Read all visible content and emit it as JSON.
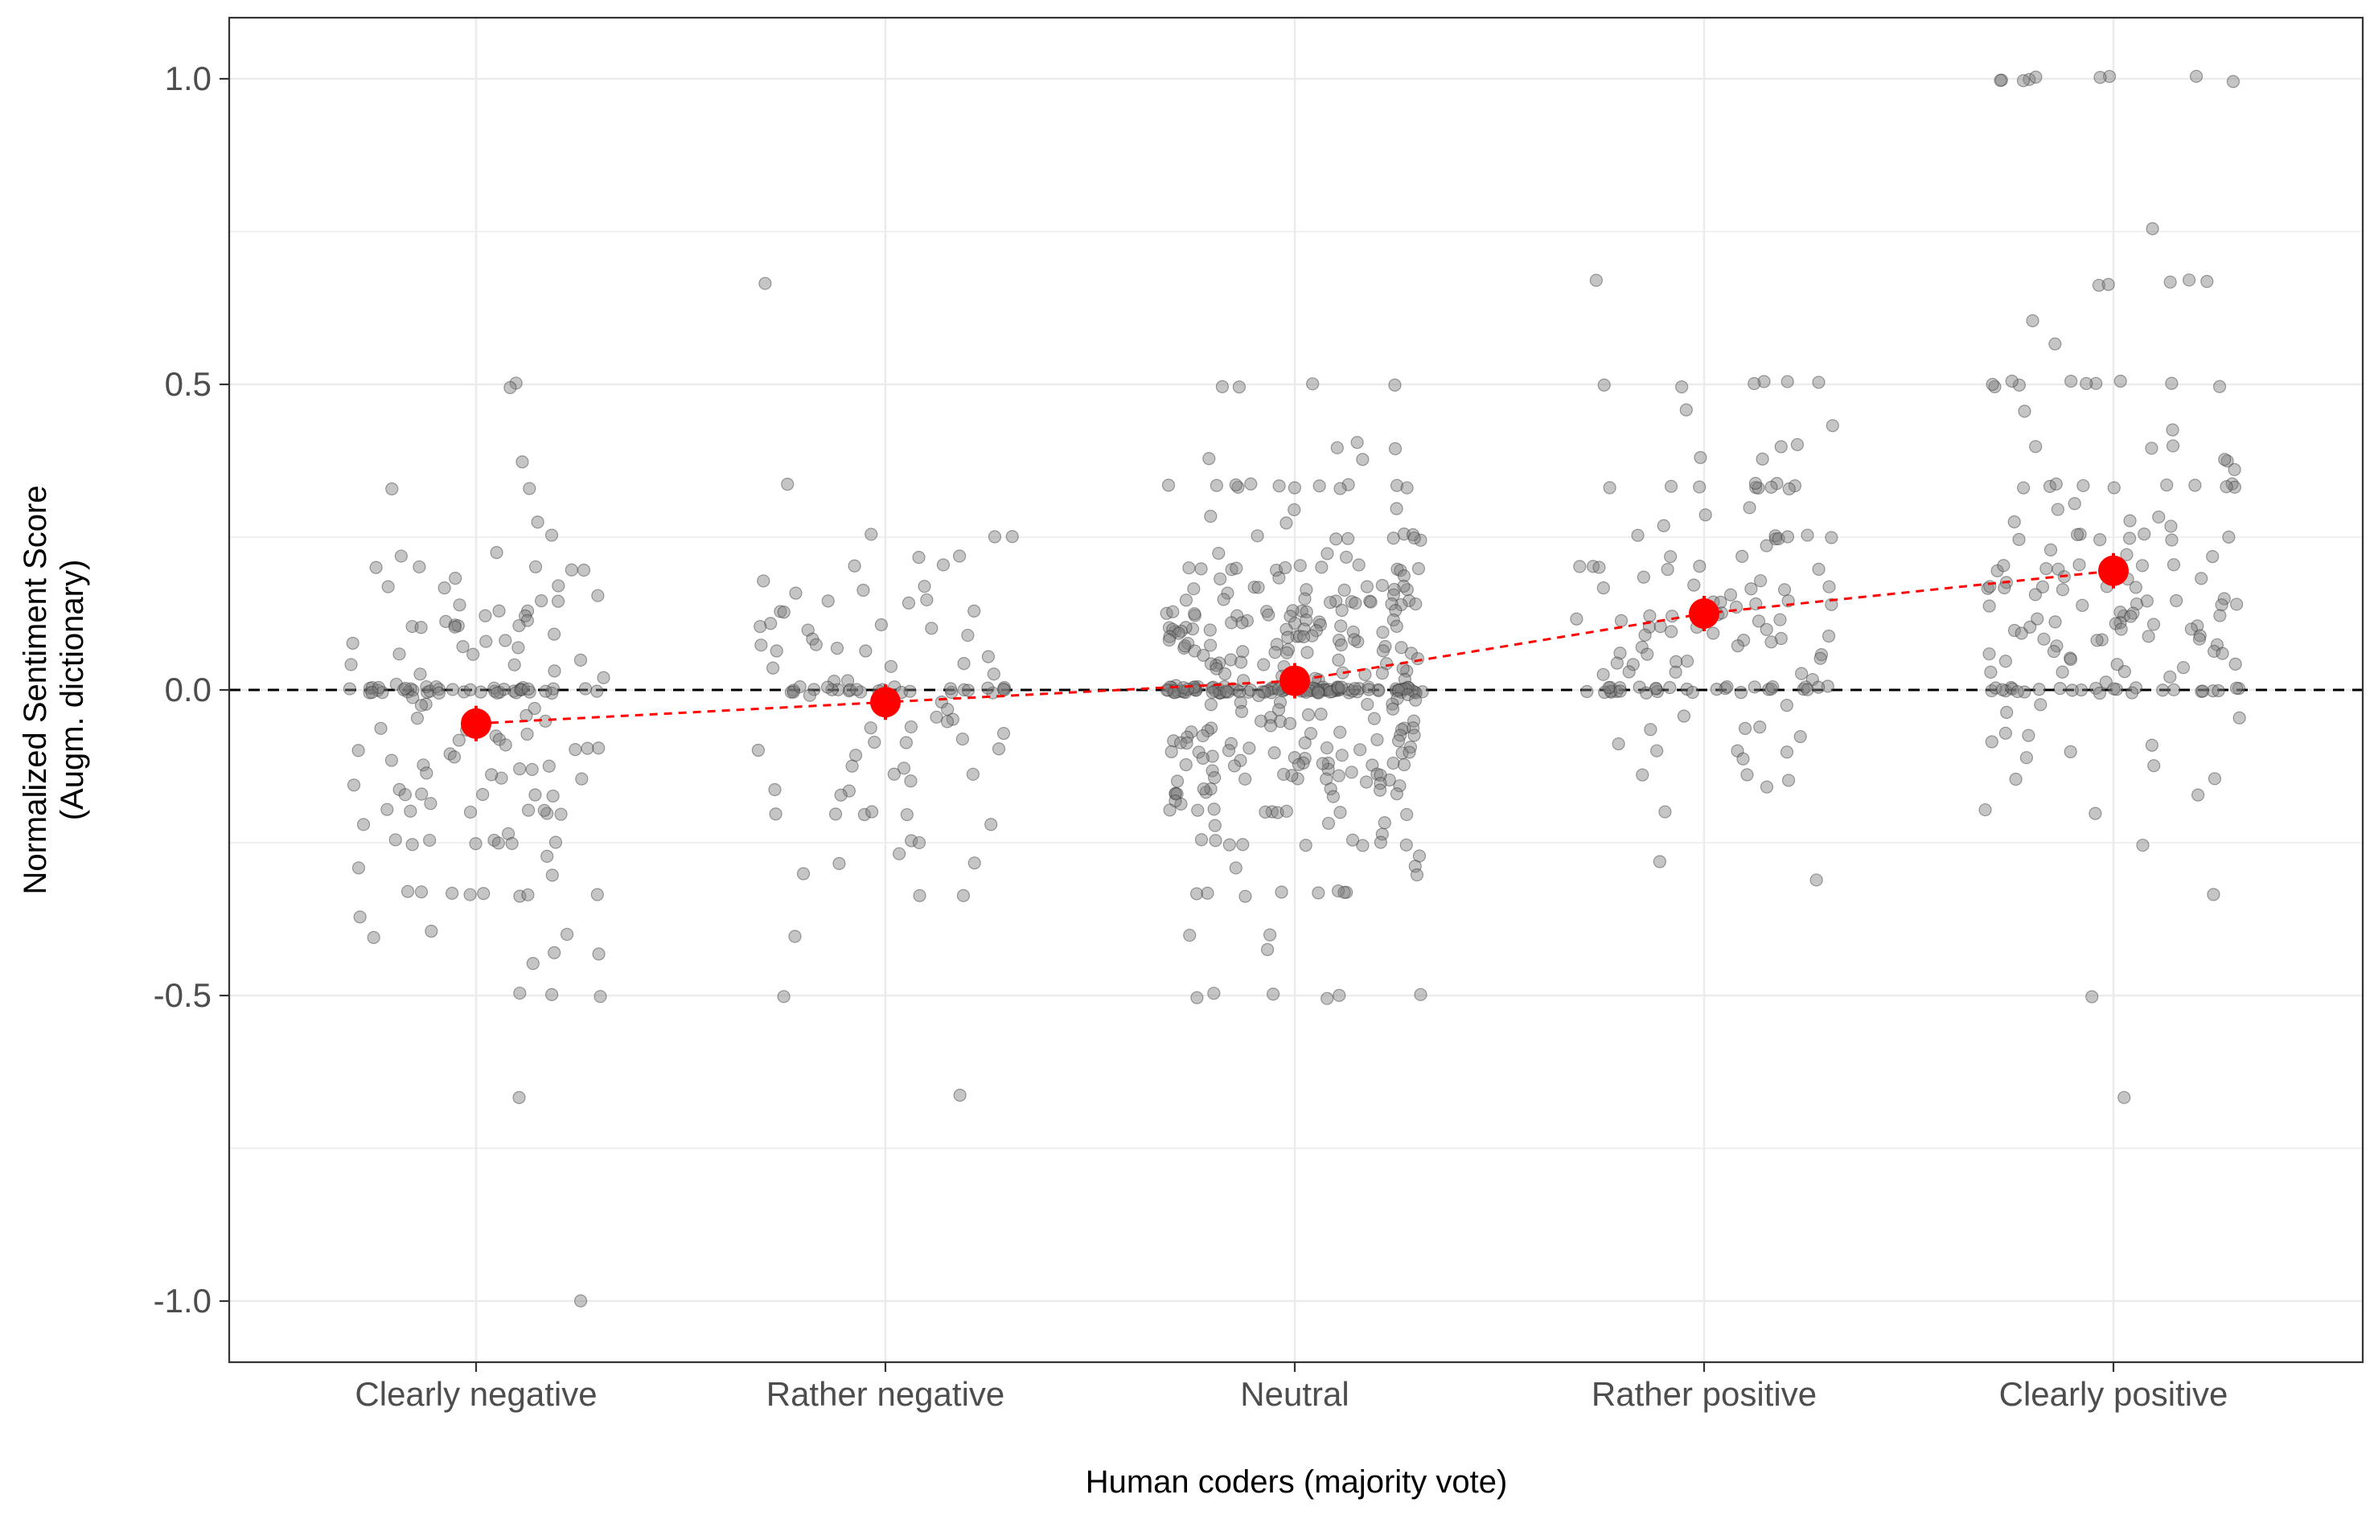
{
  "chart_data": {
    "type": "scatter",
    "title": "",
    "xlabel": "Human coders (majority vote)",
    "ylabel": [
      "Normalized Sentiment Score",
      "(Augm. dictionary)"
    ],
    "categories": [
      "Clearly negative",
      "Rather negative",
      "Neutral",
      "Rather positive",
      "Clearly positive"
    ],
    "ylim": [
      -1.1,
      1.1
    ],
    "yticks": [
      -1.0,
      -0.5,
      0.0,
      0.5,
      1.0
    ],
    "ytick_labels": [
      "-1.0",
      "-0.5",
      "0.0",
      "0.5",
      "1.0"
    ],
    "grid": true,
    "reference_line": {
      "y": 0,
      "style": "dashed",
      "color": "#000000"
    },
    "point_color": "#7f7f7f",
    "mean_series": {
      "name": "",
      "color": "#ff0000",
      "style": "dashed",
      "values": [
        -0.055,
        -0.02,
        0.015,
        0.125,
        0.195
      ]
    },
    "jitter_points": [
      {
        "category": "Clearly negative",
        "values": [
          0.5,
          0.5,
          0.375,
          0.333,
          0.333,
          0.273,
          0.25,
          0.222,
          0.222,
          0.2,
          0.2,
          0.2,
          0.2,
          0.2,
          0.182,
          0.167,
          0.167,
          0.167,
          0.154,
          0.143,
          0.143,
          0.143,
          0.125,
          0.125,
          0.125,
          0.12,
          0.111,
          0.111,
          0.111,
          0.1,
          0.1,
          0.1,
          0.1,
          0.1,
          0.091,
          0.083,
          0.083,
          0.077,
          0.071,
          0.067,
          0.063,
          0.059,
          0.05,
          0.043,
          0.04,
          0.033,
          0.029,
          0.02,
          0.01,
          0.005,
          0,
          0,
          0,
          0,
          0,
          0,
          0,
          0,
          0,
          0,
          0,
          0,
          0,
          0,
          0,
          0,
          0,
          0,
          0,
          0,
          0,
          0,
          0,
          0,
          0,
          0,
          0,
          0,
          0,
          0,
          0,
          0,
          0,
          0,
          0,
          0,
          0,
          0,
          0,
          0,
          -0.01,
          -0.02,
          -0.025,
          -0.03,
          -0.04,
          -0.05,
          -0.056,
          -0.063,
          -0.067,
          -0.071,
          -0.077,
          -0.083,
          -0.083,
          -0.091,
          -0.091,
          -0.1,
          -0.1,
          -0.1,
          -0.1,
          -0.111,
          -0.111,
          -0.118,
          -0.125,
          -0.125,
          -0.125,
          -0.133,
          -0.143,
          -0.143,
          -0.143,
          -0.154,
          -0.167,
          -0.167,
          -0.167,
          -0.167,
          -0.167,
          -0.176,
          -0.182,
          -0.2,
          -0.2,
          -0.2,
          -0.2,
          -0.2,
          -0.2,
          -0.2,
          -0.222,
          -0.231,
          -0.25,
          -0.25,
          -0.25,
          -0.25,
          -0.25,
          -0.25,
          -0.25,
          -0.25,
          -0.273,
          -0.286,
          -0.3,
          -0.333,
          -0.333,
          -0.333,
          -0.333,
          -0.333,
          -0.333,
          -0.333,
          -0.333,
          -0.375,
          -0.4,
          -0.4,
          -0.4,
          -0.429,
          -0.429,
          -0.444,
          -0.5,
          -0.5,
          -0.5,
          -0.667,
          -1.0
        ]
      },
      {
        "category": "Rather negative",
        "values": [
          0.667,
          0.333,
          0.25,
          0.25,
          0.25,
          0.222,
          0.222,
          0.2,
          0.2,
          0.182,
          0.167,
          0.167,
          0.154,
          0.143,
          0.143,
          0.143,
          0.125,
          0.125,
          0.125,
          0.111,
          0.111,
          0.1,
          0.1,
          0.1,
          0.091,
          0.083,
          0.077,
          0.071,
          0.067,
          0.063,
          0.059,
          0.05,
          0.043,
          0.04,
          0.033,
          0.029,
          0.02,
          0.01,
          0,
          0,
          0,
          0,
          0,
          0,
          0,
          0,
          0,
          0,
          0,
          0,
          0,
          0,
          0,
          0,
          0,
          0,
          0,
          0,
          0,
          0,
          0,
          0,
          0,
          0,
          -0.01,
          -0.02,
          -0.03,
          -0.04,
          -0.05,
          -0.056,
          -0.063,
          -0.067,
          -0.071,
          -0.077,
          -0.083,
          -0.091,
          -0.1,
          -0.1,
          -0.111,
          -0.125,
          -0.125,
          -0.143,
          -0.143,
          -0.154,
          -0.167,
          -0.167,
          -0.167,
          -0.2,
          -0.2,
          -0.2,
          -0.2,
          -0.2,
          -0.222,
          -0.25,
          -0.25,
          -0.273,
          -0.286,
          -0.286,
          -0.3,
          -0.333,
          -0.333,
          -0.4,
          -0.5,
          -0.667
        ]
      },
      {
        "category": "Neutral",
        "values": [
          0.5,
          0.5,
          0.5,
          0.5,
          0.4,
          0.4,
          0.4,
          0.375,
          0.375,
          0.333,
          0.333,
          0.333,
          0.333,
          0.333,
          0.333,
          0.333,
          0.333,
          0.333,
          0.333,
          0.333,
          0.333,
          0.3,
          0.3,
          0.286,
          0.273,
          0.25,
          0.25,
          0.25,
          0.25,
          0.25,
          0.25,
          0.25,
          0.25,
          0.222,
          0.222,
          0.222,
          0.2,
          0.2,
          0.2,
          0.2,
          0.2,
          0.2,
          0.2,
          0.2,
          0.2,
          0.2,
          0.2,
          0.2,
          0.182,
          0.182,
          0.182,
          0.167,
          0.167,
          0.167,
          0.167,
          0.167,
          0.167,
          0.167,
          0.167,
          0.167,
          0.167,
          0.154,
          0.154,
          0.154,
          0.143,
          0.143,
          0.143,
          0.143,
          0.143,
          0.143,
          0.143,
          0.143,
          0.143,
          0.143,
          0.143,
          0.143,
          0.133,
          0.133,
          0.125,
          0.125,
          0.125,
          0.125,
          0.125,
          0.125,
          0.125,
          0.125,
          0.125,
          0.125,
          0.118,
          0.111,
          0.111,
          0.111,
          0.111,
          0.111,
          0.111,
          0.111,
          0.111,
          0.1,
          0.1,
          0.1,
          0.1,
          0.1,
          0.1,
          0.1,
          0.1,
          0.1,
          0.1,
          0.1,
          0.1,
          0.091,
          0.091,
          0.091,
          0.091,
          0.091,
          0.083,
          0.083,
          0.083,
          0.083,
          0.083,
          0.083,
          0.077,
          0.077,
          0.077,
          0.077,
          0.071,
          0.071,
          0.071,
          0.071,
          0.067,
          0.067,
          0.067,
          0.067,
          0.063,
          0.063,
          0.063,
          0.059,
          0.059,
          0.056,
          0.056,
          0.053,
          0.05,
          0.05,
          0.048,
          0.045,
          0.043,
          0.042,
          0.04,
          0.038,
          0.036,
          0.034,
          0.033,
          0.031,
          0.03,
          0.029,
          0.028,
          0.025,
          0.023,
          0.02,
          0.018,
          0.015,
          0.012,
          0.01,
          0.008,
          0.005,
          0,
          0,
          0,
          0,
          0,
          0,
          0,
          0,
          0,
          0,
          0,
          0,
          0,
          0,
          0,
          0,
          0,
          0,
          0,
          0,
          0,
          0,
          0,
          0,
          0,
          0,
          0,
          0,
          0,
          0,
          0,
          0,
          0,
          0,
          0,
          0,
          0,
          0,
          0,
          0,
          0,
          0,
          0,
          0,
          0,
          0,
          0,
          0,
          0,
          0,
          0,
          0,
          0,
          0,
          0,
          0,
          0,
          0,
          0,
          0,
          0,
          0,
          0,
          0,
          0,
          0,
          0,
          0,
          0,
          0,
          0,
          0,
          0,
          0,
          0,
          0,
          0,
          0,
          0,
          0,
          0,
          0,
          0,
          0,
          0,
          0,
          0,
          0,
          0,
          0,
          0,
          0,
          0,
          0,
          0,
          0,
          0,
          0,
          0,
          0,
          -0.005,
          -0.008,
          -0.01,
          -0.012,
          -0.015,
          -0.018,
          -0.02,
          -0.023,
          -0.025,
          -0.028,
          -0.03,
          -0.033,
          -0.036,
          -0.04,
          -0.043,
          -0.045,
          -0.048,
          -0.05,
          -0.05,
          -0.053,
          -0.056,
          -0.059,
          -0.059,
          -0.063,
          -0.063,
          -0.067,
          -0.067,
          -0.067,
          -0.071,
          -0.071,
          -0.071,
          -0.077,
          -0.077,
          -0.077,
          -0.083,
          -0.083,
          -0.083,
          -0.083,
          -0.091,
          -0.091,
          -0.091,
          -0.091,
          -0.1,
          -0.1,
          -0.1,
          -0.1,
          -0.1,
          -0.1,
          -0.1,
          -0.1,
          -0.1,
          -0.111,
          -0.111,
          -0.111,
          -0.111,
          -0.111,
          -0.111,
          -0.118,
          -0.118,
          -0.125,
          -0.125,
          -0.125,
          -0.125,
          -0.125,
          -0.125,
          -0.125,
          -0.125,
          -0.133,
          -0.133,
          -0.133,
          -0.143,
          -0.143,
          -0.143,
          -0.143,
          -0.143,
          -0.143,
          -0.143,
          -0.143,
          -0.143,
          -0.154,
          -0.154,
          -0.154,
          -0.154,
          -0.167,
          -0.167,
          -0.167,
          -0.167,
          -0.167,
          -0.167,
          -0.167,
          -0.167,
          -0.167,
          -0.176,
          -0.182,
          -0.182,
          -0.2,
          -0.2,
          -0.2,
          -0.2,
          -0.2,
          -0.2,
          -0.2,
          -0.2,
          -0.2,
          -0.222,
          -0.222,
          -0.222,
          -0.231,
          -0.25,
          -0.25,
          -0.25,
          -0.25,
          -0.25,
          -0.25,
          -0.25,
          -0.25,
          -0.25,
          -0.273,
          -0.286,
          -0.286,
          -0.3,
          -0.333,
          -0.333,
          -0.333,
          -0.333,
          -0.333,
          -0.333,
          -0.333,
          -0.333,
          -0.4,
          -0.4,
          -0.429,
          -0.5,
          -0.5,
          -0.5,
          -0.5,
          -0.5,
          -0.5
        ]
      },
      {
        "category": "Rather positive",
        "values": [
          0.667,
          0.5,
          0.5,
          0.5,
          0.5,
          0.5,
          0.5,
          0.455,
          0.429,
          0.4,
          0.4,
          0.375,
          0.375,
          0.333,
          0.333,
          0.333,
          0.333,
          0.333,
          0.333,
          0.333,
          0.333,
          0.333,
          0.333,
          0.3,
          0.286,
          0.273,
          0.25,
          0.25,
          0.25,
          0.25,
          0.25,
          0.25,
          0.25,
          0.231,
          0.222,
          0.222,
          0.2,
          0.2,
          0.2,
          0.2,
          0.2,
          0.2,
          0.182,
          0.182,
          0.167,
          0.167,
          0.167,
          0.167,
          0.167,
          0.154,
          0.15,
          0.143,
          0.143,
          0.143,
          0.143,
          0.133,
          0.125,
          0.125,
          0.125,
          0.125,
          0.118,
          0.111,
          0.111,
          0.111,
          0.105,
          0.1,
          0.1,
          0.1,
          0.1,
          0.091,
          0.091,
          0.083,
          0.083,
          0.077,
          0.077,
          0.071,
          0.067,
          0.063,
          0.059,
          0.056,
          0.05,
          0.048,
          0.045,
          0.043,
          0.04,
          0.033,
          0.029,
          0.025,
          0.02,
          0.015,
          0.01,
          0.005,
          0,
          0,
          0,
          0,
          0,
          0,
          0,
          0,
          0,
          0,
          0,
          0,
          0,
          0,
          0,
          0,
          0,
          0,
          0,
          0,
          0,
          0,
          0,
          0,
          0,
          0,
          0,
          0,
          -0.02,
          -0.04,
          -0.056,
          -0.067,
          -0.067,
          -0.077,
          -0.083,
          -0.1,
          -0.1,
          -0.1,
          -0.111,
          -0.143,
          -0.143,
          -0.143,
          -0.154,
          -0.2,
          -0.286,
          -0.308
        ]
      },
      {
        "category": "Clearly positive",
        "values": [
          1.0,
          1.0,
          1.0,
          1.0,
          1.0,
          1.0,
          1.0,
          1.0,
          1.0,
          0.75,
          0.667,
          0.667,
          0.667,
          0.667,
          0.667,
          0.6,
          0.571,
          0.5,
          0.5,
          0.5,
          0.5,
          0.5,
          0.5,
          0.5,
          0.5,
          0.5,
          0.5,
          0.455,
          0.429,
          0.4,
          0.4,
          0.4,
          0.375,
          0.375,
          0.364,
          0.333,
          0.333,
          0.333,
          0.333,
          0.333,
          0.333,
          0.333,
          0.333,
          0.333,
          0.333,
          0.3,
          0.3,
          0.286,
          0.273,
          0.273,
          0.263,
          0.25,
          0.25,
          0.25,
          0.25,
          0.25,
          0.25,
          0.25,
          0.25,
          0.231,
          0.222,
          0.222,
          0.2,
          0.2,
          0.2,
          0.2,
          0.2,
          0.2,
          0.2,
          0.2,
          0.2,
          0.2,
          0.182,
          0.182,
          0.182,
          0.176,
          0.167,
          0.167,
          0.167,
          0.167,
          0.167,
          0.167,
          0.167,
          0.154,
          0.154,
          0.143,
          0.143,
          0.143,
          0.143,
          0.143,
          0.143,
          0.133,
          0.125,
          0.125,
          0.125,
          0.125,
          0.125,
          0.118,
          0.111,
          0.111,
          0.111,
          0.111,
          0.1,
          0.1,
          0.1,
          0.1,
          0.1,
          0.091,
          0.091,
          0.091,
          0.083,
          0.083,
          0.083,
          0.077,
          0.077,
          0.071,
          0.067,
          0.067,
          0.063,
          0.059,
          0.056,
          0.05,
          0.05,
          0.045,
          0.04,
          0.037,
          0.033,
          0.029,
          0.025,
          0.02,
          0.01,
          0,
          0,
          0,
          0,
          0,
          0,
          0,
          0,
          0,
          0,
          0,
          0,
          0,
          0,
          0,
          0,
          0,
          0,
          0,
          0,
          0,
          0,
          0,
          0,
          0,
          0,
          -0.02,
          -0.033,
          -0.05,
          -0.067,
          -0.077,
          -0.083,
          -0.091,
          -0.1,
          -0.111,
          -0.125,
          -0.143,
          -0.143,
          -0.167,
          -0.2,
          -0.2,
          -0.25,
          -0.333,
          -0.5,
          -0.667
        ]
      }
    ]
  }
}
